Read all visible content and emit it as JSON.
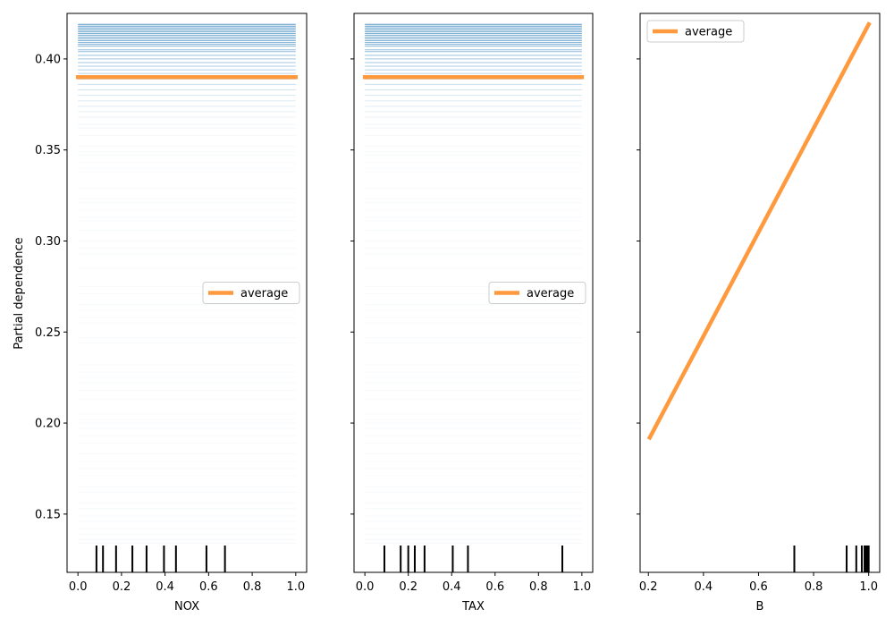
{
  "figure": {
    "ylabel": "Partial dependence",
    "ylim": [
      0.118,
      0.425
    ],
    "yticks": [
      0.15,
      0.2,
      0.25,
      0.3,
      0.35,
      0.4
    ],
    "ytick_labels": [
      "0.15",
      "0.20",
      "0.25",
      "0.30",
      "0.35",
      "0.40"
    ]
  },
  "chart_data": [
    {
      "type": "line",
      "xlabel": "NOX",
      "xlim": [
        -0.05,
        1.05
      ],
      "xticks": [
        0.0,
        0.2,
        0.4,
        0.6,
        0.8,
        1.0
      ],
      "xtick_labels": [
        "0.0",
        "0.2",
        "0.4",
        "0.6",
        "0.8",
        "1.0"
      ],
      "ice_lines": [
        0.419,
        0.418,
        0.417,
        0.416,
        0.415,
        0.414,
        0.413,
        0.412,
        0.411,
        0.41,
        0.409,
        0.408,
        0.407,
        0.405,
        0.404,
        0.402,
        0.4,
        0.398,
        0.396,
        0.394,
        0.392,
        0.389,
        0.386,
        0.383,
        0.38,
        0.377,
        0.374,
        0.371,
        0.368,
        0.364,
        0.362,
        0.358,
        0.352,
        0.349,
        0.347,
        0.343,
        0.34,
        0.338,
        0.329,
        0.323,
        0.321,
        0.317,
        0.313,
        0.311,
        0.306,
        0.3,
        0.296,
        0.293,
        0.285,
        0.275,
        0.271,
        0.265,
        0.262,
        0.258,
        0.255,
        0.247,
        0.244,
        0.232,
        0.228,
        0.225,
        0.222,
        0.218,
        0.213,
        0.205,
        0.202,
        0.2,
        0.197,
        0.193,
        0.189,
        0.183,
        0.179,
        0.175,
        0.171,
        0.165,
        0.162,
        0.156,
        0.153,
        0.149,
        0.146,
        0.142,
        0.139,
        0.136,
        0.134
      ],
      "series": [
        {
          "name": "average",
          "x": [
            0.0,
            1.0
          ],
          "y": [
            0.39,
            0.39
          ]
        }
      ],
      "rug": [
        0.085,
        0.115,
        0.175,
        0.25,
        0.315,
        0.395,
        0.45,
        0.59,
        0.675
      ],
      "legend": "center-right"
    },
    {
      "type": "line",
      "xlabel": "TAX",
      "xlim": [
        -0.05,
        1.05
      ],
      "xticks": [
        0.0,
        0.2,
        0.4,
        0.6,
        0.8,
        1.0
      ],
      "xtick_labels": [
        "0.0",
        "0.2",
        "0.4",
        "0.6",
        "0.8",
        "1.0"
      ],
      "ice_lines": [
        0.419,
        0.418,
        0.417,
        0.416,
        0.415,
        0.414,
        0.413,
        0.412,
        0.411,
        0.41,
        0.409,
        0.408,
        0.407,
        0.405,
        0.404,
        0.402,
        0.4,
        0.398,
        0.396,
        0.394,
        0.392,
        0.389,
        0.386,
        0.383,
        0.38,
        0.377,
        0.374,
        0.371,
        0.368,
        0.364,
        0.362,
        0.358,
        0.352,
        0.349,
        0.347,
        0.343,
        0.34,
        0.338,
        0.329,
        0.323,
        0.321,
        0.317,
        0.313,
        0.311,
        0.306,
        0.3,
        0.296,
        0.293,
        0.285,
        0.275,
        0.271,
        0.265,
        0.262,
        0.258,
        0.255,
        0.247,
        0.244,
        0.232,
        0.228,
        0.225,
        0.222,
        0.218,
        0.213,
        0.205,
        0.202,
        0.2,
        0.197,
        0.193,
        0.189,
        0.183,
        0.179,
        0.175,
        0.171,
        0.165,
        0.162,
        0.156,
        0.153,
        0.149,
        0.146,
        0.142,
        0.139,
        0.136,
        0.134
      ],
      "series": [
        {
          "name": "average",
          "x": [
            0.0,
            1.0
          ],
          "y": [
            0.39,
            0.39
          ]
        }
      ],
      "rug": [
        0.09,
        0.165,
        0.2,
        0.23,
        0.275,
        0.405,
        0.475,
        0.91
      ],
      "legend": "center-right"
    },
    {
      "type": "line",
      "xlabel": "B",
      "xlim": [
        0.17,
        1.04
      ],
      "xticks": [
        0.2,
        0.4,
        0.6,
        0.8,
        1.0
      ],
      "xtick_labels": [
        "0.2",
        "0.4",
        "0.6",
        "0.8",
        "1.0"
      ],
      "ice_lines": [],
      "series": [
        {
          "name": "average",
          "x": [
            0.205,
            1.0
          ],
          "y": [
            0.192,
            0.419
          ]
        }
      ],
      "rug": [
        0.73,
        0.92,
        0.955,
        0.975,
        0.985,
        0.99,
        0.995,
        1.0
      ],
      "legend": "upper-left"
    }
  ]
}
